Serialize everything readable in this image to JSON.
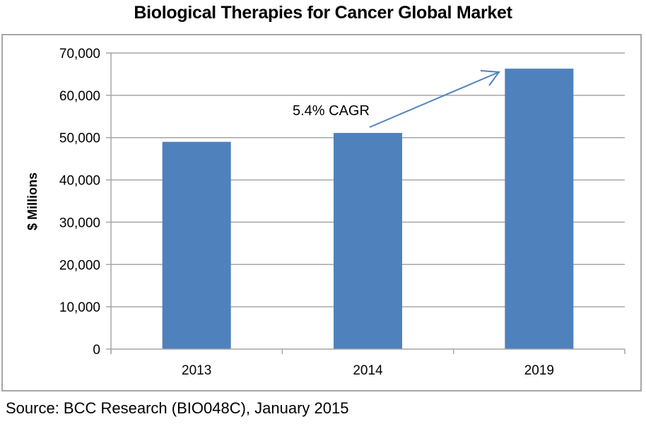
{
  "title": "Biological Therapies for Cancer Global Market",
  "source": "Source: BCC Research (BIO048C), January 2015",
  "colors": {
    "bar": "#4f81bd",
    "arrow": "#4f81bd",
    "grid": "#a6a6a6",
    "frame": "#a6a6a6"
  },
  "y_axis": {
    "label": "$ Millions",
    "ticks": [
      "0",
      "10,000",
      "20,000",
      "30,000",
      "40,000",
      "50,000",
      "60,000",
      "70,000"
    ]
  },
  "x_axis": {
    "ticks": [
      "2013",
      "2014",
      "2019"
    ]
  },
  "annotation": {
    "text": "5.4% CAGR"
  },
  "chart_data": {
    "type": "bar",
    "title": "Biological Therapies for Cancer Global Market",
    "xlabel": "",
    "ylabel": "$ Millions",
    "categories": [
      "2013",
      "2014",
      "2019"
    ],
    "values": [
      49000,
      51100,
      66300
    ],
    "ylim": [
      0,
      70000
    ],
    "yticks": [
      0,
      10000,
      20000,
      30000,
      40000,
      50000,
      60000,
      70000
    ],
    "grid": true,
    "legend": null,
    "annotations": [
      {
        "text": "5.4% CAGR",
        "type": "arrow",
        "from": "2014",
        "to": "2019"
      }
    ],
    "source": "Source: BCC Research (BIO048C), January 2015"
  }
}
